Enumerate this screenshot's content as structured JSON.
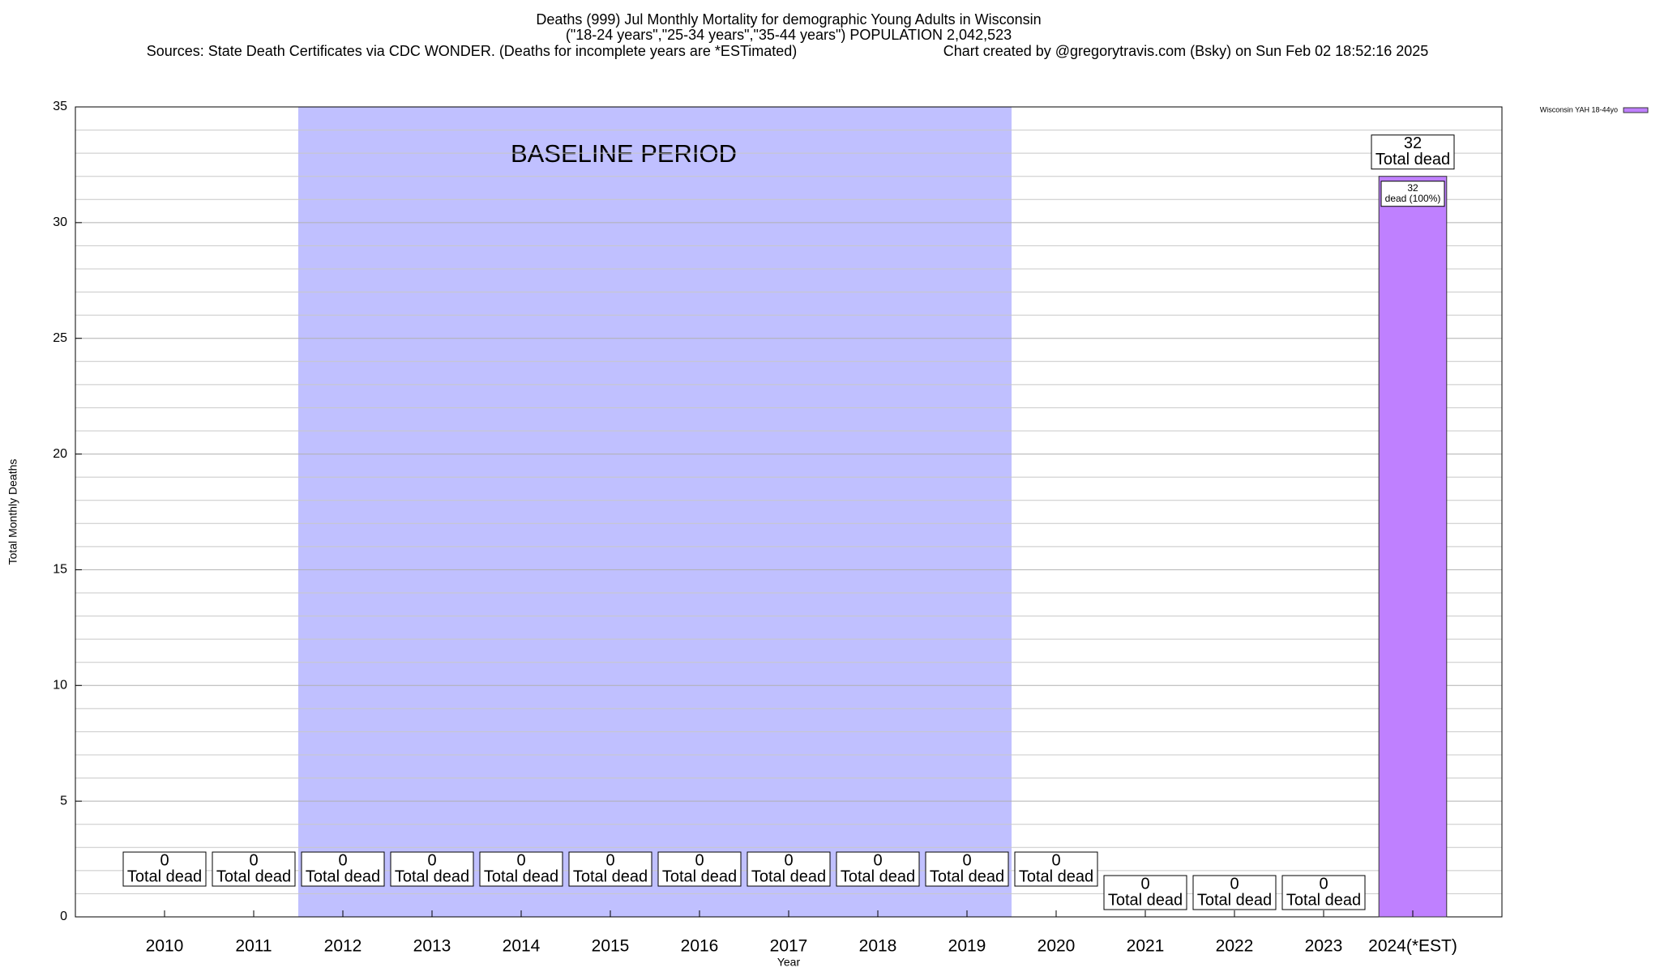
{
  "chart_data": {
    "type": "bar",
    "title": "Deaths (999) Jul Monthly Mortality for demographic Young Adults in Wisconsin",
    "subtitle": "(\"18-24 years\",\"25-34 years\",\"35-44 years\") POPULATION 2,042,523",
    "source": "Sources: State Death Certificates via CDC WONDER. (Deaths for incomplete years are *ESTimated)",
    "credit": "Chart created by @gregorytravis.com (Bsky) on Sun Feb 02 18:52:16 2025",
    "x_label": "Year",
    "y_label": "Total Monthly Deaths",
    "annotation": "BASELINE PERIOD",
    "baseline_span": [
      "2012",
      "2019"
    ],
    "baseline_color": "#c0c0ff",
    "categories": [
      "2010",
      "2011",
      "2012",
      "2013",
      "2014",
      "2015",
      "2016",
      "2017",
      "2018",
      "2019",
      "2020",
      "2021",
      "2022",
      "2023",
      "2024(*EST)"
    ],
    "series": [
      {
        "name": "Wisconsin YAH 18-44yo",
        "color": "#bf80ff",
        "values": [
          0,
          0,
          0,
          0,
          0,
          0,
          0,
          0,
          0,
          0,
          0,
          0,
          0,
          0,
          32
        ]
      }
    ],
    "total_label": "Total dead",
    "segment_labels": [
      {
        "index": 14,
        "value": 32,
        "text": "dead (100%)"
      }
    ],
    "ylim": [
      0,
      35
    ],
    "yticks": [
      0,
      5,
      10,
      15,
      20,
      25,
      30,
      35
    ],
    "minor_yticks": [
      1,
      2,
      3,
      4,
      6,
      7,
      8,
      9,
      11,
      12,
      13,
      14,
      16,
      17,
      18,
      19,
      21,
      22,
      23,
      24,
      26,
      27,
      28,
      29,
      31,
      32,
      33,
      34
    ],
    "grid": true,
    "legend": "top-right"
  }
}
